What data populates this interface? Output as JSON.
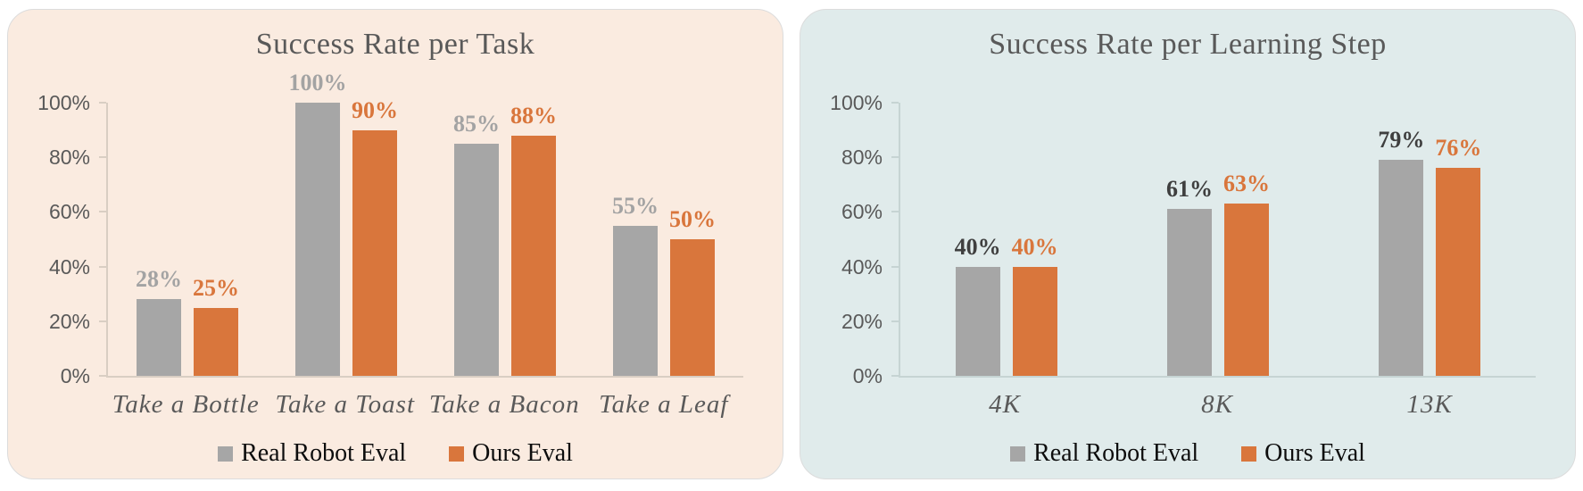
{
  "figure": {
    "background": "#ffffff"
  },
  "chart_data": [
    {
      "id": "success-rate-per-task",
      "type": "bar",
      "title": "Success Rate per Task",
      "title_color": "#595959",
      "panel_background": "#faebe0",
      "axis_color": "#d9cec3",
      "tick_label_color": "#595959",
      "category_label_color": "#595959",
      "categories": [
        "Take a Bottle",
        "Take a Toast",
        "Take a Bacon",
        "Take a Leaf"
      ],
      "series": [
        {
          "name": "Real Robot Eval",
          "color": "#a6a6a6",
          "label_color": "#a3a3a3",
          "values": [
            28,
            100,
            85,
            55
          ]
        },
        {
          "name": "Ours Eval",
          "color": "#d9763c",
          "label_color": "#d9763c",
          "values": [
            25,
            90,
            88,
            50
          ]
        }
      ],
      "value_suffix": "%",
      "xlabel": "",
      "ylabel": "",
      "ylim": [
        0,
        100
      ],
      "y_tick_step": 20,
      "y_tick_labels": [
        "0%",
        "20%",
        "40%",
        "60%",
        "80%",
        "100%"
      ],
      "grid": false,
      "legend_position": "bottom",
      "legend": [
        "Real Robot Eval",
        "Ours Eval"
      ]
    },
    {
      "id": "success-rate-per-learning-step",
      "type": "bar",
      "title": "Success Rate per Learning Step",
      "title_color": "#595959",
      "panel_background": "#e0ebeb",
      "axis_color": "#c6d4d3",
      "tick_label_color": "#595959",
      "category_label_color": "#595959",
      "categories": [
        "4K",
        "8K",
        "13K"
      ],
      "series": [
        {
          "name": "Real Robot Eval",
          "color": "#a6a6a6",
          "label_color": "#3f3f3f",
          "values": [
            40,
            61,
            79
          ]
        },
        {
          "name": "Ours Eval",
          "color": "#d9763c",
          "label_color": "#d9763c",
          "values": [
            40,
            63,
            76
          ]
        }
      ],
      "value_suffix": "%",
      "xlabel": "",
      "ylabel": "",
      "ylim": [
        0,
        100
      ],
      "y_tick_step": 20,
      "y_tick_labels": [
        "0%",
        "20%",
        "40%",
        "60%",
        "80%",
        "100%"
      ],
      "grid": false,
      "legend_position": "bottom",
      "legend": [
        "Real Robot Eval",
        "Ours Eval"
      ]
    }
  ]
}
